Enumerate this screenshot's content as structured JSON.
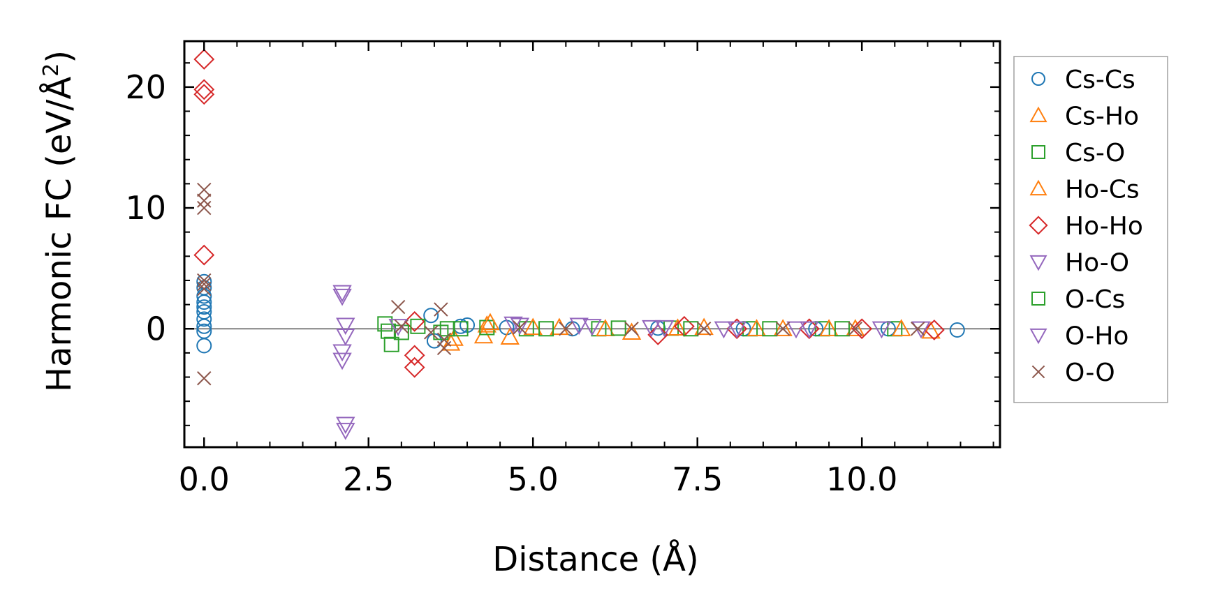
{
  "chart_data": {
    "type": "scatter",
    "title": "",
    "xlabel": "Distance (Å)",
    "ylabel": "Harmonic FC (eV/Å²)",
    "ylabel_main": "Harmonic FC (eV/Å",
    "ylabel_sup": "2",
    "ylabel_close": ")",
    "xlim": [
      -0.3,
      12.1
    ],
    "ylim": [
      -9.8,
      23.8
    ],
    "xticks": [
      0.0,
      2.5,
      5.0,
      7.5,
      10.0
    ],
    "xtick_labels": [
      "0.0",
      "2.5",
      "5.0",
      "7.5",
      "10.0"
    ],
    "yticks": [
      0,
      10,
      20
    ],
    "ytick_labels": [
      "0",
      "10",
      "20"
    ],
    "zero_line": true,
    "legend_position": "outside-right",
    "series": [
      {
        "name": "Cs-Cs",
        "marker": "circle",
        "color": "#1f77b4",
        "x": [
          0,
          0,
          0,
          0,
          0,
          0,
          0,
          0,
          0,
          0,
          3.45,
          3.5,
          3.9,
          4.0,
          4.6,
          5.6,
          6.9,
          8.2,
          9.3,
          10.4,
          11.45
        ],
        "y": [
          3.9,
          3.4,
          2.7,
          2.2,
          1.8,
          1.4,
          0.8,
          0.2,
          -0.2,
          -1.4,
          1.1,
          -1.0,
          0.2,
          0.3,
          0.1,
          0.0,
          0.05,
          0.0,
          0.0,
          0.0,
          -0.1
        ]
      },
      {
        "name": "Cs-Ho",
        "marker": "triangle-up",
        "color": "#ff7f0e",
        "x": [
          3.75,
          3.8,
          4.25,
          4.3,
          4.65,
          5.4,
          6.5,
          7.6,
          8.8,
          9.9,
          11.05
        ],
        "y": [
          -1.2,
          -0.8,
          -0.6,
          0.3,
          -0.7,
          0.1,
          -0.3,
          0.1,
          0.0,
          0.0,
          -0.2
        ]
      },
      {
        "name": "Cs-O",
        "marker": "square",
        "color": "#2ca02c",
        "x": [
          2.75,
          2.8,
          2.85,
          3.6,
          3.7,
          4.3,
          4.9,
          6.0,
          7.1,
          8.3,
          9.4,
          10.5
        ],
        "y": [
          0.4,
          -0.2,
          -1.3,
          -0.3,
          0.0,
          0.1,
          0.0,
          0.0,
          0.05,
          0.0,
          0.0,
          0.0
        ]
      },
      {
        "name": "Ho-Cs",
        "marker": "triangle-up",
        "color": "#ff7f0e",
        "x": [
          4.35,
          5.0,
          6.1,
          7.2,
          8.4,
          9.5,
          10.6
        ],
        "y": [
          0.5,
          0.1,
          0.0,
          0.05,
          0.0,
          0.0,
          0.0
        ]
      },
      {
        "name": "Ho-Ho",
        "marker": "diamond",
        "color": "#d62728",
        "x": [
          0,
          0,
          0,
          0,
          3.2,
          3.2,
          3.2,
          6.9,
          7.3,
          8.1,
          9.2,
          10.0,
          11.1
        ],
        "y": [
          22.3,
          19.8,
          19.4,
          6.1,
          0.6,
          -2.2,
          -3.2,
          -0.5,
          0.2,
          0.0,
          0.0,
          0.0,
          -0.1
        ]
      },
      {
        "name": "Ho-O",
        "marker": "triangle-down",
        "color": "#9467bd",
        "x": [
          2.1,
          2.1,
          2.15,
          2.15,
          2.1,
          2.1,
          2.15,
          2.15,
          4.7,
          5.7,
          6.8,
          7.9,
          9.0,
          10.9
        ],
        "y": [
          3.0,
          2.7,
          0.3,
          -0.6,
          -1.9,
          -2.6,
          -7.9,
          -8.4,
          0.4,
          0.3,
          0.1,
          0.0,
          0.0,
          0.0
        ]
      },
      {
        "name": "O-Cs",
        "marker": "square",
        "color": "#2ca02c",
        "x": [
          3.0,
          3.25,
          3.9,
          5.2,
          6.3,
          7.4,
          8.6,
          9.7
        ],
        "y": [
          -0.3,
          0.2,
          0.0,
          0.0,
          0.05,
          0.0,
          0.0,
          0.0
        ]
      },
      {
        "name": "O-Ho",
        "marker": "triangle-down",
        "color": "#9467bd",
        "x": [
          2.95,
          4.8,
          5.9,
          7.0,
          8.1,
          9.2,
          10.3
        ],
        "y": [
          0.2,
          0.3,
          0.2,
          0.1,
          0.0,
          0.0,
          0.0
        ]
      },
      {
        "name": "O-O",
        "marker": "x",
        "color": "#8c564b",
        "x": [
          0,
          0,
          0,
          0,
          0,
          0,
          0,
          2.95,
          3.0,
          3.45,
          3.6,
          3.65,
          3.65,
          4.8,
          5.5,
          6.5,
          7.6,
          8.8,
          9.9,
          10.85
        ],
        "y": [
          11.5,
          10.6,
          10.0,
          4.0,
          3.7,
          3.3,
          -4.1,
          1.8,
          0.2,
          -0.3,
          1.6,
          -0.9,
          -1.6,
          0.1,
          0.0,
          0.0,
          0.0,
          0.0,
          0.0,
          0.0
        ]
      }
    ]
  }
}
